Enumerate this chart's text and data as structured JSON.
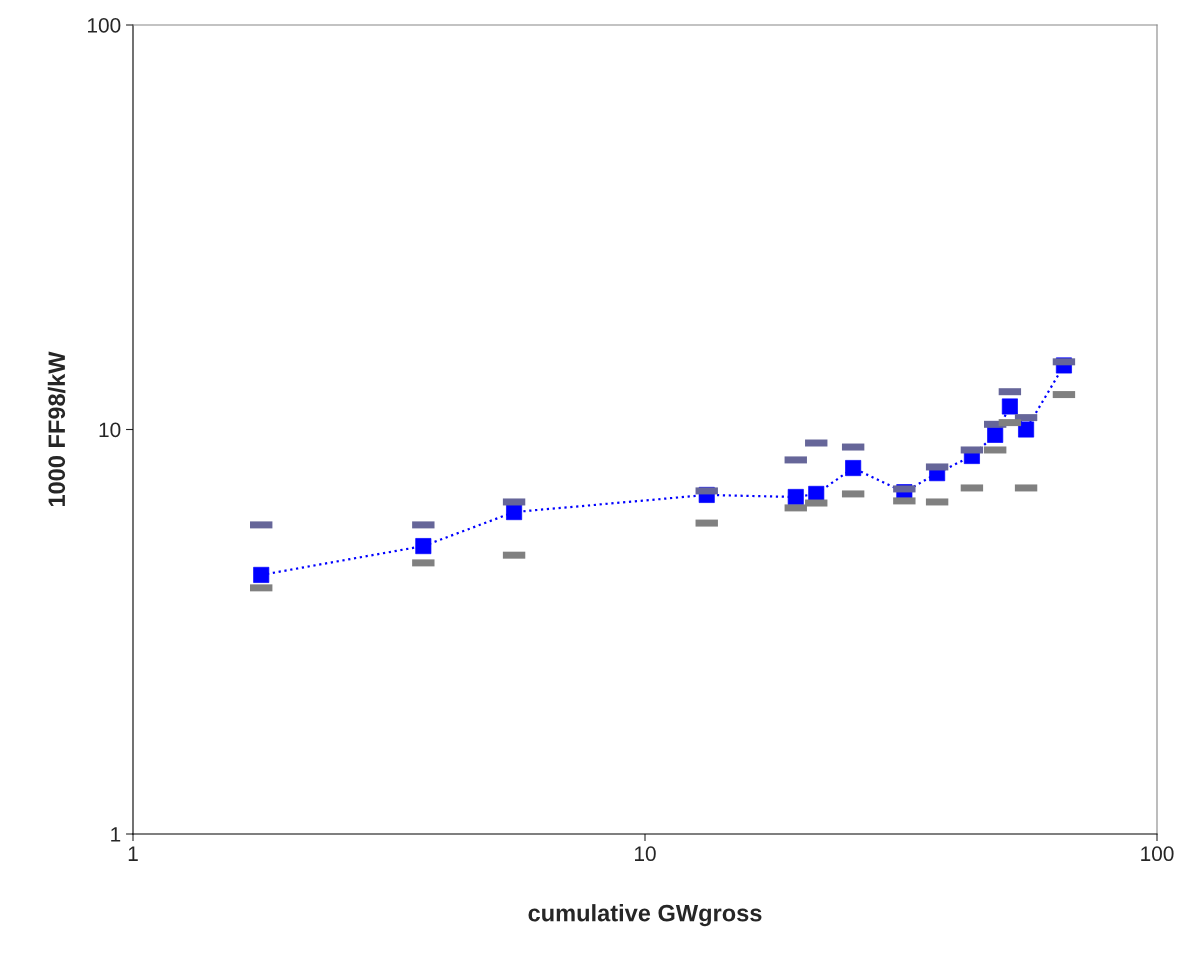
{
  "chart_data": {
    "type": "scatter",
    "xlabel": "cumulative GWgross",
    "ylabel": "1000 FF98/kW",
    "log": "xy",
    "grid": false,
    "x": [
      1.78,
      3.69,
      5.55,
      13.2,
      19.7,
      21.6,
      25.5,
      32.1,
      37.2,
      43.5,
      48.3,
      51.6,
      55.5,
      65.8
    ],
    "xlim": [
      1,
      100
    ],
    "xticks": [
      1,
      10,
      100
    ],
    "ylim": [
      1,
      100
    ],
    "yticks": [
      1,
      10,
      100
    ],
    "series": [
      {
        "type": "line",
        "marker": "square",
        "line_style": "dotted",
        "color": "#0000ff",
        "values": [
          4.37,
          5.15,
          6.25,
          6.89,
          6.81,
          6.93,
          8.03,
          7.0,
          7.8,
          8.6,
          9.7,
          11.4,
          10.0,
          14.4
        ]
      },
      {
        "marker": "square",
        "color": "#666699",
        "values": [
          5.81,
          5.81,
          6.62,
          7.05,
          8.41,
          9.26,
          9.05,
          7.13,
          8.08,
          8.9,
          10.3,
          12.4,
          10.7,
          14.7
        ]
      },
      {
        "marker": "square",
        "color": "#808080",
        "values": [
          4.06,
          4.68,
          4.89,
          5.87,
          6.4,
          6.58,
          6.93,
          6.66,
          6.62,
          7.17,
          8.9,
          10.4,
          7.17,
          12.2
        ]
      }
    ]
  }
}
